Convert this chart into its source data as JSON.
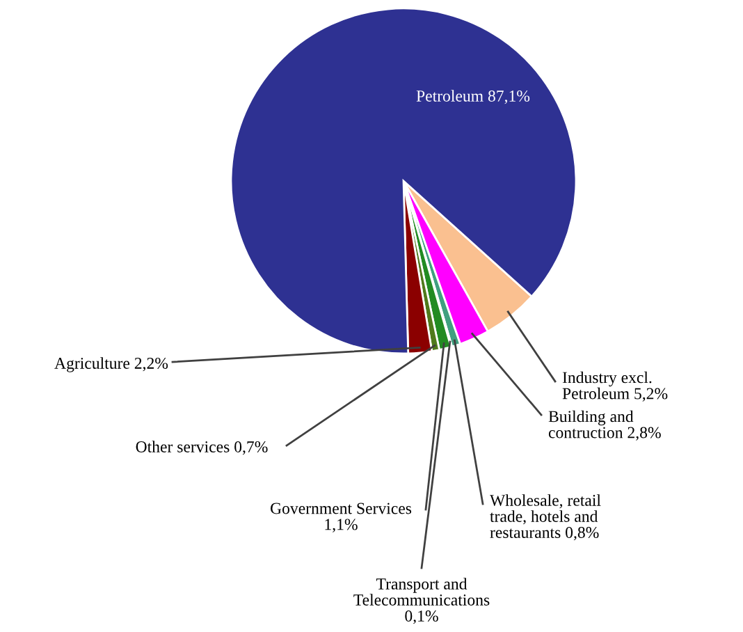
{
  "chart_data": {
    "type": "pie",
    "categories": [
      "Industry excl.\nPetroleum",
      "Building and\ncontruction",
      "Wholesale, retail\ntrade, hotels and\nrestaurants",
      "Transport and\nTelecommunications",
      "Government Services",
      "Other services",
      "Agriculture",
      "Petroleum"
    ],
    "values": [
      5.2,
      2.8,
      0.8,
      0.1,
      1.1,
      0.7,
      2.2,
      87.1
    ],
    "value_labels": [
      "5,2%",
      "2,8%",
      "0,8%",
      "0,1%",
      "1,1%",
      "0,7%",
      "2,2%",
      "87,1%"
    ],
    "colors": [
      "#fac090",
      "#ff00ff",
      "#40a080",
      "#f4f4f4",
      "#228b22",
      "#4f7a1c",
      "#8b0000",
      "#2e3192"
    ]
  }
}
